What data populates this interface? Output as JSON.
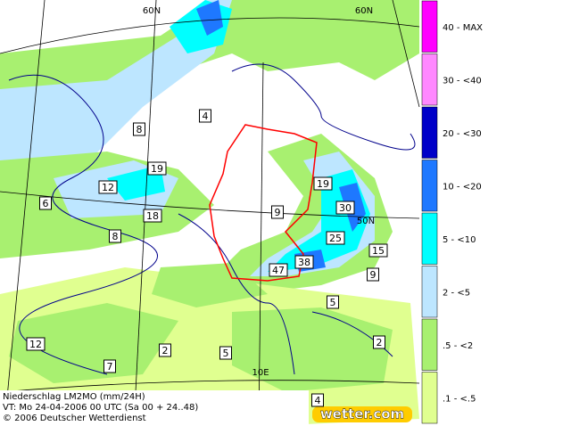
{
  "map": {
    "grid_labels": [
      "60N",
      "60N",
      "50N",
      "10E"
    ],
    "legend": [
      "40 - MAX",
      "30 - <40",
      "20 - <30",
      "10 - <20",
      "5 - <10",
      "2 - <5",
      ".5 - <2",
      ".1 - <.5"
    ],
    "legend_colors": [
      "#ff00ff",
      "#ff88ff",
      "#0000c8",
      "#1e78ff",
      "#00ffff",
      "#bde6ff",
      "#a8f070",
      "#e0ff90"
    ],
    "values": [
      4,
      8,
      19,
      12,
      6,
      18,
      8,
      19,
      30,
      9,
      25,
      15,
      38,
      47,
      9,
      5,
      12,
      2,
      5,
      2,
      7,
      4
    ],
    "caption": [
      "Niederschlag LM2MO (mm/24H)",
      "VT: Mo 24-04-2006 00 UTC (Sa 00 + 24..48)",
      "© 2006 Deutscher Wetterdienst"
    ],
    "logo": "wetter.com"
  }
}
